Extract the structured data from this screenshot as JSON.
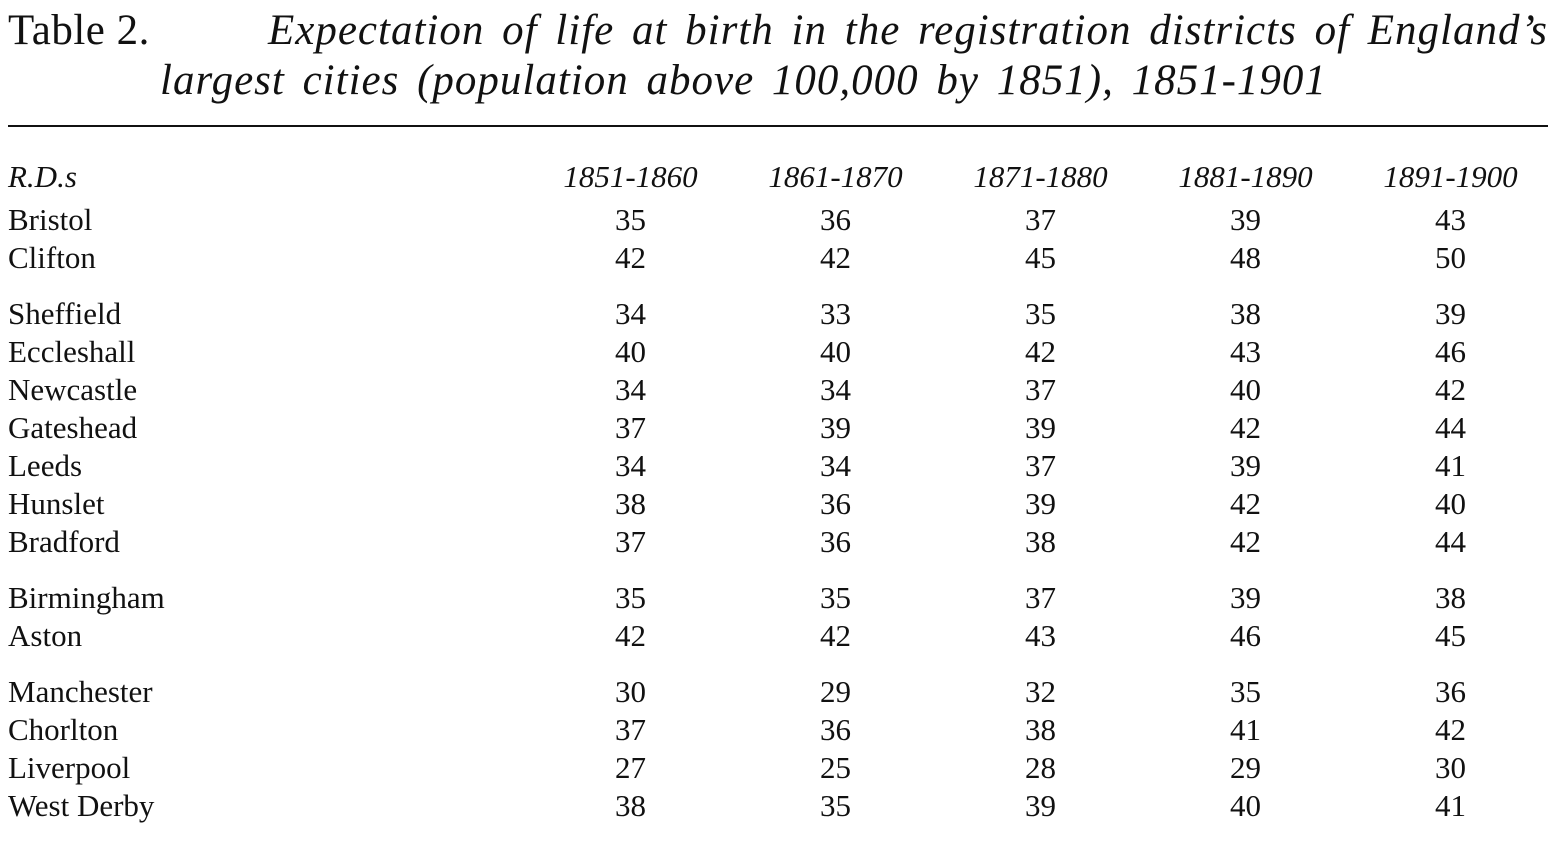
{
  "title": {
    "label": "Table 2.",
    "line1": "Expectation of life at birth in the registration districts of England’s",
    "line2": "largest cities (population above 100,000 by 1851), 1851-1901"
  },
  "table": {
    "row_header": "R.D.s",
    "periods": [
      "1851-1860",
      "1861-1870",
      "1871-1880",
      "1881-1890",
      "1891-1900"
    ],
    "rows": [
      {
        "district": "Bristol",
        "values": [
          "35",
          "36",
          "37",
          "39",
          "43"
        ]
      },
      {
        "district": "Clifton",
        "values": [
          "42",
          "42",
          "45",
          "48",
          "50"
        ]
      },
      {
        "district": "Sheffield",
        "values": [
          "34",
          "33",
          "35",
          "38",
          "39"
        ]
      },
      {
        "district": "Eccleshall",
        "values": [
          "40",
          "40",
          "42",
          "43",
          "46"
        ]
      },
      {
        "district": "Newcastle",
        "values": [
          "34",
          "34",
          "37",
          "40",
          "42"
        ]
      },
      {
        "district": "Gateshead",
        "values": [
          "37",
          "39",
          "39",
          "42",
          "44"
        ]
      },
      {
        "district": "Leeds",
        "values": [
          "34",
          "34",
          "37",
          "39",
          "41"
        ]
      },
      {
        "district": "Hunslet",
        "values": [
          "38",
          "36",
          "39",
          "42",
          "40"
        ]
      },
      {
        "district": "Bradford",
        "values": [
          "37",
          "36",
          "38",
          "42",
          "44"
        ]
      },
      {
        "district": "Birmingham",
        "values": [
          "35",
          "35",
          "37",
          "39",
          "38"
        ]
      },
      {
        "district": "Aston",
        "values": [
          "42",
          "42",
          "43",
          "46",
          "45"
        ]
      },
      {
        "district": "Manchester",
        "values": [
          "30",
          "29",
          "32",
          "35",
          "36"
        ]
      },
      {
        "district": "Chorlton",
        "values": [
          "37",
          "36",
          "38",
          "41",
          "42"
        ]
      },
      {
        "district": "Liverpool",
        "values": [
          "27",
          "25",
          "28",
          "29",
          "30"
        ]
      },
      {
        "district": "West Derby",
        "values": [
          "38",
          "35",
          "39",
          "40",
          "41"
        ]
      }
    ]
  }
}
